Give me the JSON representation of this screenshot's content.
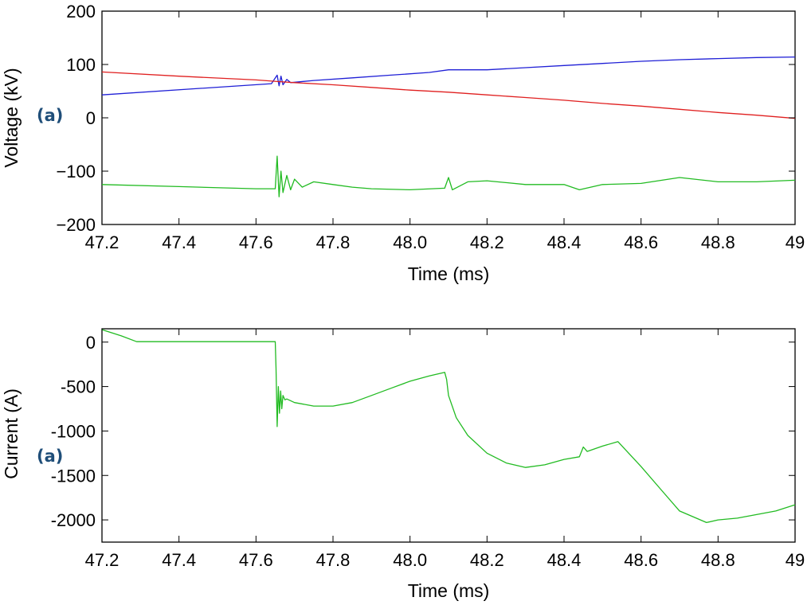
{
  "chart_data": [
    {
      "type": "line",
      "panel_label": "(a)",
      "xlabel": "Time (ms)",
      "ylabel": "Voltage (kV)",
      "xlim": [
        47.2,
        49
      ],
      "ylim": [
        -200,
        200
      ],
      "x_ticks": [
        "47.2",
        "47.4",
        "47.6",
        "47.8",
        "48.0",
        "48.2",
        "48.4",
        "48.6",
        "48.8",
        "49"
      ],
      "y_ticks": [
        "200",
        "100",
        "0",
        "−100",
        "−200"
      ],
      "grid": false,
      "series": [
        {
          "color": "#1f1fd6",
          "x": [
            47.2,
            47.64,
            47.655,
            47.66,
            47.665,
            47.67,
            47.68,
            47.69,
            47.75,
            47.85,
            47.95,
            48.05,
            48.1,
            48.2,
            48.3,
            48.4,
            48.5,
            48.6,
            48.7,
            48.8,
            48.9,
            49.0
          ],
          "y": [
            43,
            64,
            80,
            60,
            78,
            62,
            72,
            66,
            70,
            75,
            80,
            85,
            90,
            90,
            94,
            98,
            102,
            106,
            109,
            111,
            113,
            114
          ]
        },
        {
          "color": "#e02020",
          "x": [
            47.2,
            47.4,
            47.6,
            47.655,
            47.7,
            47.8,
            47.9,
            48.0,
            48.1,
            48.2,
            48.3,
            48.4,
            48.5,
            48.6,
            48.7,
            48.8,
            48.9,
            49.0
          ],
          "y": [
            86,
            78,
            71,
            68,
            66,
            62,
            57,
            52,
            48,
            43,
            38,
            33,
            27,
            22,
            16,
            10,
            5,
            -1
          ]
        },
        {
          "color": "#22bb22",
          "x": [
            47.2,
            47.4,
            47.6,
            47.65,
            47.655,
            47.66,
            47.665,
            47.67,
            47.68,
            47.69,
            47.7,
            47.72,
            47.75,
            47.8,
            47.85,
            47.9,
            48.0,
            48.09,
            48.1,
            48.11,
            48.15,
            48.2,
            48.3,
            48.4,
            48.44,
            48.5,
            48.6,
            48.7,
            48.8,
            48.9,
            49.0
          ],
          "y": [
            -125,
            -129,
            -133,
            -133,
            -72,
            -148,
            -100,
            -140,
            -108,
            -135,
            -115,
            -130,
            -120,
            -125,
            -130,
            -133,
            -135,
            -132,
            -112,
            -135,
            -120,
            -118,
            -125,
            -125,
            -135,
            -125,
            -123,
            -112,
            -120,
            -120,
            -117
          ]
        }
      ]
    },
    {
      "type": "line",
      "panel_label": "(a)",
      "xlabel": "Time (ms)",
      "ylabel": "Current (A)",
      "xlim": [
        47.2,
        49
      ],
      "ylim": [
        -2250,
        150
      ],
      "x_ticks": [
        "47.2",
        "47.4",
        "47.6",
        "47.8",
        "48.0",
        "48.2",
        "48.4",
        "48.6",
        "48.8",
        "49"
      ],
      "y_ticks": [
        "0",
        "-500",
        "-1000",
        "-1500",
        "-2000"
      ],
      "y_tick_values": [
        0,
        -500,
        -1000,
        -1500,
        -2000
      ],
      "grid": false,
      "series": [
        {
          "color": "#22bb22",
          "x": [
            47.2,
            47.25,
            47.29,
            47.4,
            47.5,
            47.6,
            47.65,
            47.652,
            47.655,
            47.658,
            47.661,
            47.664,
            47.667,
            47.67,
            47.675,
            47.68,
            47.7,
            47.75,
            47.8,
            47.85,
            47.9,
            47.95,
            48.0,
            48.05,
            48.09,
            48.095,
            48.1,
            48.12,
            48.15,
            48.2,
            48.25,
            48.3,
            48.35,
            48.4,
            48.44,
            48.45,
            48.46,
            48.5,
            48.54,
            48.6,
            48.65,
            48.7,
            48.77,
            48.8,
            48.85,
            48.9,
            48.95,
            49.0
          ],
          "y": [
            140,
            70,
            5,
            5,
            5,
            5,
            5,
            -300,
            -950,
            -500,
            -800,
            -550,
            -750,
            -600,
            -650,
            -640,
            -680,
            -720,
            -720,
            -680,
            -600,
            -520,
            -440,
            -380,
            -340,
            -420,
            -600,
            -850,
            -1050,
            -1250,
            -1360,
            -1410,
            -1380,
            -1320,
            -1290,
            -1180,
            -1230,
            -1170,
            -1120,
            -1400,
            -1650,
            -1900,
            -2030,
            -2000,
            -1980,
            -1940,
            -1900,
            -1830
          ]
        }
      ]
    }
  ]
}
